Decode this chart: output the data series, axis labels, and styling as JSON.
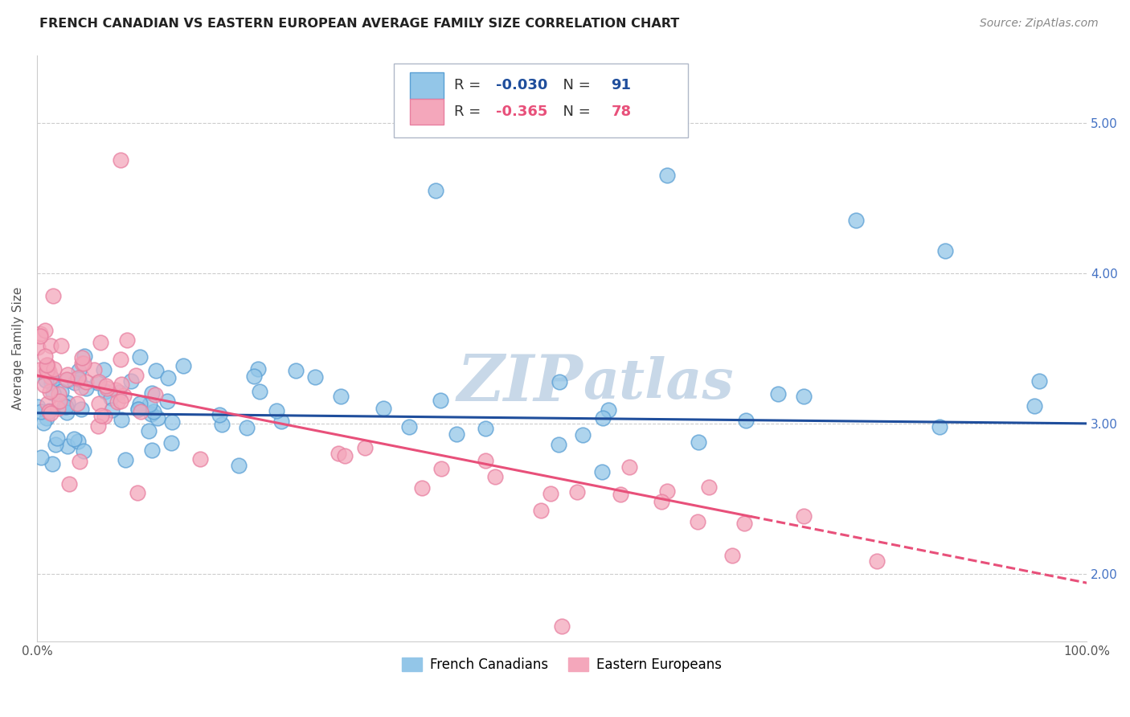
{
  "title": "FRENCH CANADIAN VS EASTERN EUROPEAN AVERAGE FAMILY SIZE CORRELATION CHART",
  "source": "Source: ZipAtlas.com",
  "ylabel": "Average Family Size",
  "xlim": [
    0.0,
    1.0
  ],
  "ylim": [
    1.55,
    5.45
  ],
  "blue_R": "-0.030",
  "blue_N": "91",
  "pink_R": "-0.365",
  "pink_N": "78",
  "blue_color": "#93c6e8",
  "pink_color": "#f4a7bb",
  "blue_edge_color": "#5a9fd4",
  "pink_edge_color": "#e87fa0",
  "blue_line_color": "#1f4e9c",
  "pink_line_color": "#e8507a",
  "watermark_color": "#c8d8e8",
  "background_color": "#ffffff",
  "grid_color": "#cccccc",
  "legend_label_blue": "French Canadians",
  "legend_label_pink": "Eastern Europeans",
  "right_tick_color": "#4472c4",
  "title_color": "#222222",
  "source_color": "#888888"
}
